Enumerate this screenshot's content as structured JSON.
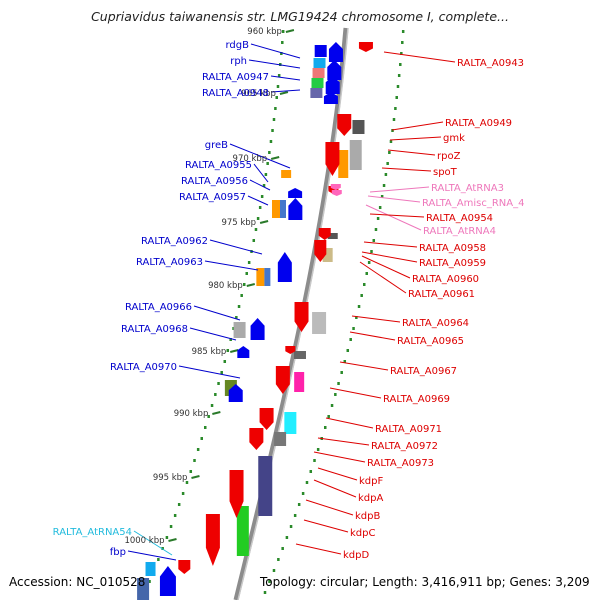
{
  "title": "Cupriavidus taiwanensis str. LMG19424 chromosome I, complete...",
  "accession": "Accession: NC_010528",
  "topology": "Topology: circular; Length: 3,416,911 bp; Genes: 3,209",
  "colors": {
    "backbone": "#999999",
    "forward_label": "#0000cc",
    "reverse_label": "#dd0000",
    "rna_label_pink": "#ee77bb",
    "rna_label_cyan": "#22bbdd",
    "dash": "#2a8a2a"
  },
  "scale_labels": [
    "960 kbp",
    "965 kbp",
    "970 kbp",
    "975 kbp",
    "980 kbp",
    "985 kbp",
    "990 kbp",
    "995 kbp",
    "1000 kbp"
  ],
  "left_labels": [
    {
      "text": "rdgB",
      "color": "blue"
    },
    {
      "text": "rph",
      "color": "blue"
    },
    {
      "text": "RALTA_A0947",
      "color": "blue"
    },
    {
      "text": "RALTA_A0948",
      "color": "blue"
    },
    {
      "text": "greB",
      "color": "blue"
    },
    {
      "text": "RALTA_A0955",
      "color": "blue"
    },
    {
      "text": "RALTA_A0956",
      "color": "blue"
    },
    {
      "text": "RALTA_A0957",
      "color": "blue"
    },
    {
      "text": "RALTA_A0962",
      "color": "blue"
    },
    {
      "text": "RALTA_A0963",
      "color": "blue"
    },
    {
      "text": "RALTA_A0966",
      "color": "blue"
    },
    {
      "text": "RALTA_A0968",
      "color": "blue"
    },
    {
      "text": "RALTA_A0970",
      "color": "blue"
    },
    {
      "text": "RALTA_AtRNA54",
      "color": "cyan"
    },
    {
      "text": "fbp",
      "color": "blue"
    }
  ],
  "right_labels": [
    {
      "text": "RALTA_A0943",
      "color": "red"
    },
    {
      "text": "RALTA_A0949",
      "color": "red"
    },
    {
      "text": "gmk",
      "color": "red"
    },
    {
      "text": "rpoZ",
      "color": "red"
    },
    {
      "text": "spoT",
      "color": "red"
    },
    {
      "text": "RALTA_AtRNA3",
      "color": "pink"
    },
    {
      "text": "RALTA_Amisc_RNA_4",
      "color": "pink"
    },
    {
      "text": "RALTA_AtRNA4",
      "color": "pink"
    },
    {
      "text": "RALTA_A0954",
      "color": "red"
    },
    {
      "text": "RALTA_A0958",
      "color": "red"
    },
    {
      "text": "RALTA_A0959",
      "color": "red"
    },
    {
      "text": "RALTA_A0960",
      "color": "red"
    },
    {
      "text": "RALTA_A0961",
      "color": "red"
    },
    {
      "text": "RALTA_A0964",
      "color": "red"
    },
    {
      "text": "RALTA_A0965",
      "color": "red"
    },
    {
      "text": "RALTA_A0967",
      "color": "red"
    },
    {
      "text": "RALTA_A0969",
      "color": "red"
    },
    {
      "text": "RALTA_A0971",
      "color": "red"
    },
    {
      "text": "RALTA_A0972",
      "color": "red"
    },
    {
      "text": "RALTA_A0973",
      "color": "red"
    },
    {
      "text": "kdpF",
      "color": "red"
    },
    {
      "text": "kdpA",
      "color": "red"
    },
    {
      "text": "kdpB",
      "color": "red"
    },
    {
      "text": "kdpC",
      "color": "red"
    },
    {
      "text": "kdpD",
      "color": "red"
    }
  ]
}
